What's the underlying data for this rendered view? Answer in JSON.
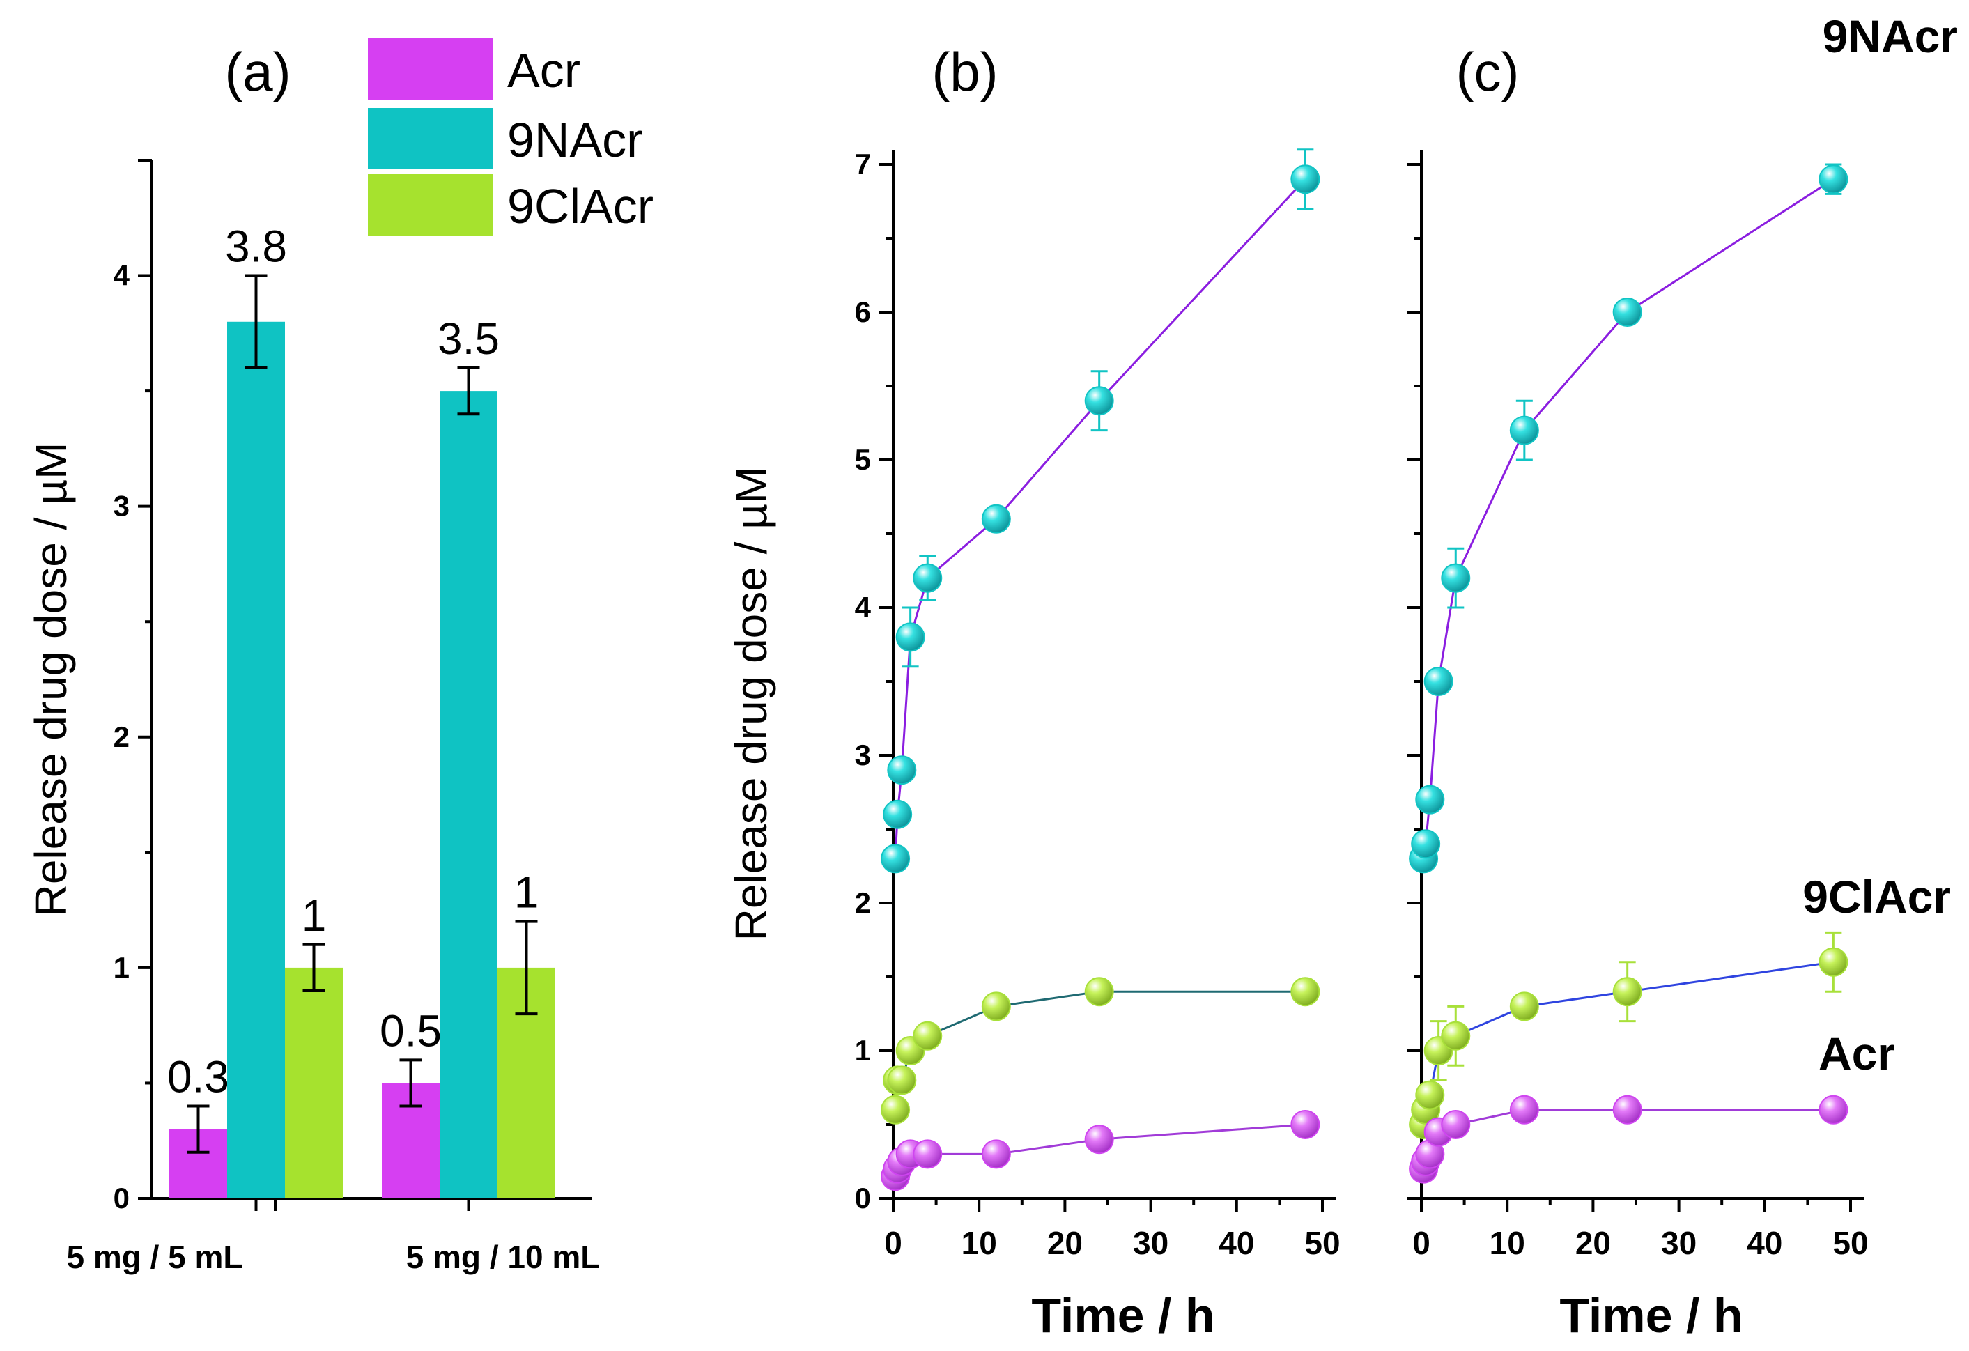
{
  "chart_data": [
    {
      "panel": "a",
      "type": "bar",
      "title": "(a)",
      "ylabel": "Release drug dose /  µM",
      "xlabel": "",
      "ylim": [
        0,
        4.5
      ],
      "yticks": [
        0,
        1,
        2,
        3,
        4
      ],
      "categories": [
        "5 mg / 5 mL",
        "5 mg / 10 mL"
      ],
      "legend_position": "top-right",
      "series": [
        {
          "name": "Acr",
          "color": "#d63ff2",
          "values": [
            0.3,
            0.5
          ],
          "errors": [
            0.1,
            0.1
          ],
          "labels": [
            "0.3",
            "0.5"
          ]
        },
        {
          "name": "9NAcr",
          "color": "#0fc3c3",
          "values": [
            3.8,
            3.5
          ],
          "errors": [
            0.2,
            0.1
          ],
          "labels": [
            "3.8",
            "3.5"
          ]
        },
        {
          "name": "9ClAcr",
          "color": "#a6e22e",
          "values": [
            1.0,
            1.0
          ],
          "errors": [
            0.1,
            0.2
          ],
          "labels": [
            "1",
            "1"
          ]
        }
      ]
    },
    {
      "panel": "b",
      "type": "line",
      "title": "(b)",
      "ylabel": "Release drug dose /  µM",
      "xlabel": "Time / h",
      "xlim": [
        0,
        50
      ],
      "ylim": [
        0,
        7
      ],
      "xticks": [
        0,
        10,
        20,
        30,
        40,
        50
      ],
      "yticks": [
        0,
        1,
        2,
        3,
        4,
        5,
        6,
        7
      ],
      "series": [
        {
          "name": "9NAcr",
          "marker_color": "#11c4c4",
          "line_color": "#8b1ee0",
          "x": [
            0.25,
            0.5,
            1,
            2,
            4,
            12,
            24,
            48
          ],
          "y": [
            2.3,
            2.6,
            2.9,
            3.8,
            4.2,
            4.6,
            5.4,
            6.9
          ],
          "errors": [
            0.05,
            0.05,
            0.05,
            0.2,
            0.15,
            0.05,
            0.2,
            0.2
          ]
        },
        {
          "name": "9ClAcr",
          "marker_color": "#a8e03a",
          "line_color": "#1f6a72",
          "x": [
            0.25,
            0.5,
            1,
            2,
            4,
            12,
            24,
            48
          ],
          "y": [
            0.6,
            0.8,
            0.8,
            1.0,
            1.1,
            1.3,
            1.4,
            1.4
          ],
          "errors": [
            0.05,
            0.05,
            0.05,
            0.05,
            0.05,
            0.05,
            0.05,
            0.05
          ]
        },
        {
          "name": "Acr",
          "marker_color": "#cf45f0",
          "line_color": "#a13bd8",
          "x": [
            0.25,
            0.5,
            1,
            2,
            4,
            12,
            24,
            48
          ],
          "y": [
            0.15,
            0.2,
            0.25,
            0.3,
            0.3,
            0.3,
            0.4,
            0.5
          ],
          "errors": [
            0.03,
            0.03,
            0.03,
            0.03,
            0.03,
            0.03,
            0.03,
            0.03
          ]
        }
      ]
    },
    {
      "panel": "c",
      "type": "line",
      "title": "(c)",
      "ylabel": "",
      "xlabel": "Time / h",
      "xlim": [
        0,
        50
      ],
      "ylim": [
        0,
        7
      ],
      "xticks": [
        0,
        10,
        20,
        30,
        40,
        50
      ],
      "yticks": [
        0,
        1,
        2,
        3,
        4,
        5,
        6,
        7
      ],
      "series": [
        {
          "name": "9NAcr",
          "marker_color": "#11c4c4",
          "line_color": "#8b1ee0",
          "x": [
            0.25,
            0.5,
            1,
            2,
            4,
            12,
            24,
            48
          ],
          "y": [
            2.3,
            2.4,
            2.7,
            3.5,
            4.2,
            5.2,
            6.0,
            6.9
          ],
          "errors": [
            0.05,
            0.05,
            0.05,
            0.05,
            0.2,
            0.2,
            0.05,
            0.1
          ]
        },
        {
          "name": "9ClAcr",
          "marker_color": "#a8e03a",
          "line_color": "#2f44e0",
          "x": [
            0.25,
            0.5,
            1,
            2,
            4,
            12,
            24,
            48
          ],
          "y": [
            0.5,
            0.6,
            0.7,
            1.0,
            1.1,
            1.3,
            1.4,
            1.6
          ],
          "errors": [
            0.05,
            0.05,
            0.05,
            0.2,
            0.2,
            0.05,
            0.2,
            0.2
          ]
        },
        {
          "name": "Acr",
          "marker_color": "#cf45f0",
          "line_color": "#a13bd8",
          "x": [
            0.25,
            0.5,
            1,
            2,
            4,
            12,
            24,
            48
          ],
          "y": [
            0.2,
            0.25,
            0.3,
            0.45,
            0.5,
            0.6,
            0.6,
            0.6
          ],
          "errors": [
            0.03,
            0.03,
            0.03,
            0.03,
            0.03,
            0.03,
            0.03,
            0.03
          ]
        }
      ],
      "series_labels": [
        "9NAcr",
        "9ClAcr",
        "Acr"
      ]
    }
  ]
}
